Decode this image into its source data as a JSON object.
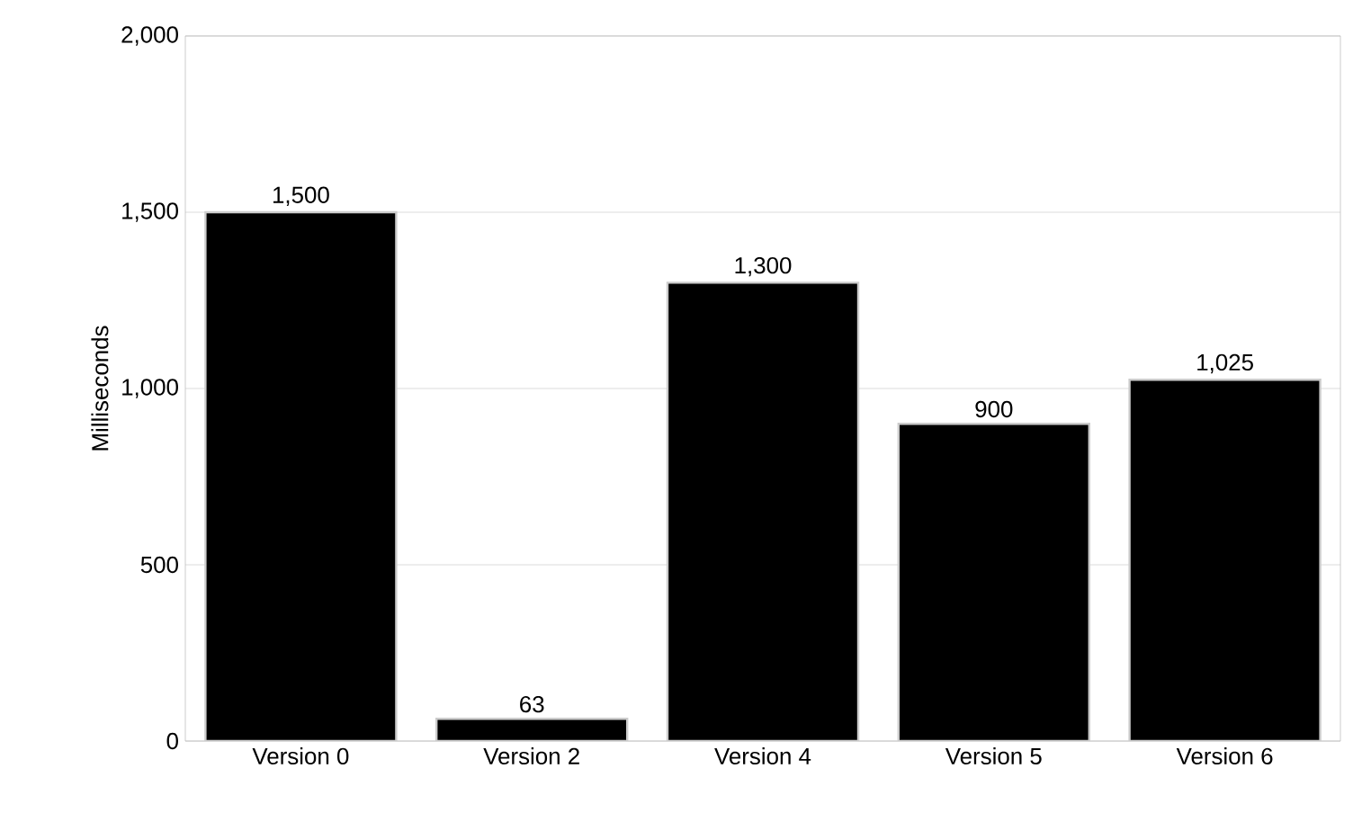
{
  "chart_data": {
    "type": "bar",
    "ylabel": "Milliseconds",
    "categories": [
      "Version 0",
      "Version 2",
      "Version 4",
      "Version 5",
      "Version 6"
    ],
    "values": [
      1500,
      63,
      1300,
      900,
      1025
    ],
    "value_labels": [
      "1,500",
      "63",
      "1,300",
      "900",
      "1,025"
    ],
    "color": "#000000",
    "ylim": [
      0,
      2000
    ],
    "yticks": [
      0,
      500,
      {
        "value": 1000,
        "label": "1,000"
      },
      {
        "value": 1500,
        "label": "1,500"
      },
      {
        "value": 2000,
        "label": "2,000"
      }
    ],
    "grid": "y"
  }
}
